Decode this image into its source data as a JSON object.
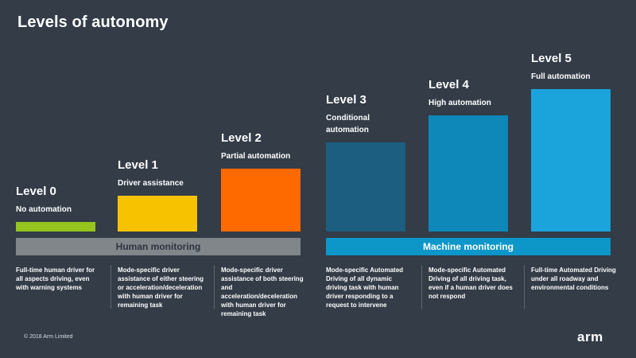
{
  "title": "Levels of autonomy",
  "chart_data": {
    "type": "bar",
    "title": "Levels of autonomy",
    "categories": [
      "Level 0",
      "Level 1",
      "Level 2",
      "Level 3",
      "Level 4",
      "Level 5"
    ],
    "subtitles": [
      "No automation",
      "Driver assistance",
      "Partial automation",
      "Conditional automation",
      "High automation",
      "Full automation"
    ],
    "values": [
      0,
      1,
      2,
      3,
      4,
      5
    ],
    "ylim": [
      0,
      5
    ],
    "colors": [
      "#95c41e",
      "#f7c200",
      "#ff6a00",
      "#1b5e80",
      "#0d88b8",
      "#1ba3dc"
    ],
    "grid": false,
    "groups": [
      {
        "label": "Human monitoring",
        "levels": [
          "Level 0",
          "Level 1",
          "Level 2"
        ],
        "color": "#808689"
      },
      {
        "label": "Machine monitoring",
        "levels": [
          "Level 3",
          "Level 4",
          "Level 5"
        ],
        "color": "#0d96c8"
      }
    ],
    "descriptions": [
      "Full-time human driver for all aspects driving, even with warning systems",
      "Mode-specific driver assistance of either steering or acceleration/deceleration with human driver for remaining task",
      "Mode-specific driver assistance of both steering and acceleration/deceleration with human driver for remaining task",
      "Mode-specific Automated Driving of all dynamic driving task with human driver responding to a request to intervene",
      "Mode-specific Automated Driving of all driving task, even if a human driver does not respond",
      "Full-time Automated Driving under all roadway and environmental conditions"
    ]
  },
  "footer": {
    "copyright": "© 2018 Arm Limited",
    "logo": "arm"
  }
}
